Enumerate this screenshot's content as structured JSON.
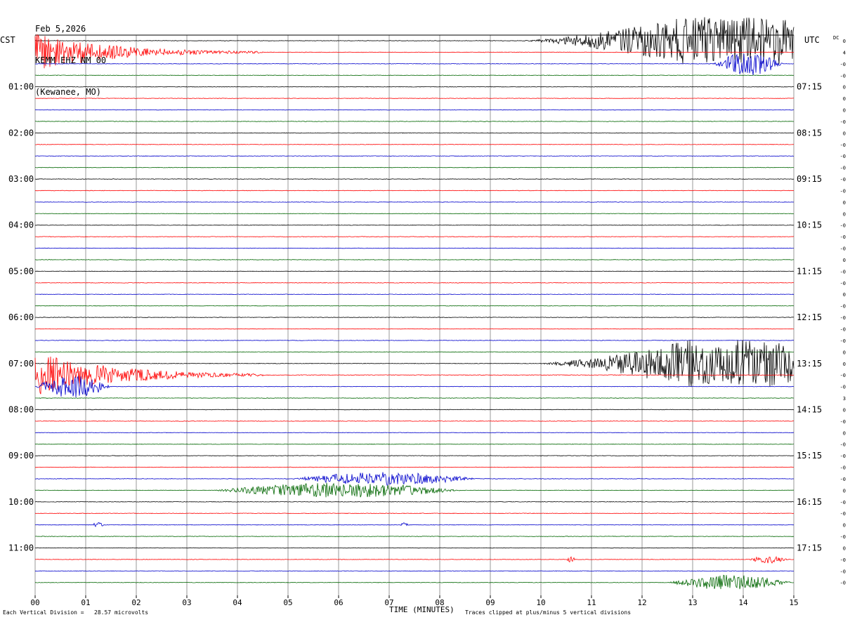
{
  "header": {
    "date": "Feb 5,2026",
    "station": "KEMM EHZ NM 00",
    "location": "(Kewanee, MO)"
  },
  "left_timezone": "CST",
  "right_timezone": "UTC",
  "right_header": "DC",
  "footer": {
    "scale": "Each Vertical Division =   28.57 microvolts",
    "xlabel": "TIME (MINUTES)",
    "clip_note": "Traces clipped at plus/minus 5 vertical divisions"
  },
  "colors": {
    "trace_cycle": [
      "#000000",
      "#ff0000",
      "#0000cc",
      "#006600"
    ],
    "grid": "#808080"
  },
  "chart_data": {
    "type": "line",
    "title": "Feb 5,2026 KEMM EHZ NM 00 (Kewanee, MO)",
    "xlabel": "TIME (MINUTES)",
    "xlim": [
      0,
      15
    ],
    "x_ticks": [
      "00",
      "01",
      "02",
      "03",
      "04",
      "05",
      "06",
      "07",
      "08",
      "09",
      "10",
      "11",
      "12",
      "13",
      "14",
      "15"
    ],
    "row_count": 48,
    "minutes_per_row": 15,
    "left_hour_labels": [
      "01:00",
      "02:00",
      "03:00",
      "04:00",
      "05:00",
      "06:00",
      "07:00",
      "08:00",
      "09:00",
      "10:00",
      "11:00"
    ],
    "right_hour_labels": [
      "07:15",
      "08:15",
      "09:15",
      "10:15",
      "11:15",
      "12:15",
      "13:15",
      "14:15",
      "15:15",
      "16:15",
      "17:15"
    ],
    "first_labeled_row": 4,
    "rows_per_hour": 4,
    "dc_offsets": [
      "0",
      "4",
      "-0",
      "-0",
      "0",
      "0",
      "0",
      "-0",
      "0",
      "-0",
      "-0",
      "-0",
      "-0",
      "-0",
      "0",
      "0",
      "-0",
      "-0",
      "-0",
      "0",
      "-0",
      "-0",
      "0",
      "-0",
      "-0",
      "-0",
      "-0",
      "0",
      "0",
      "-0",
      "-0",
      "3",
      "0",
      "-0",
      "0",
      "-0",
      "-0",
      "-0",
      "-0",
      "0",
      "-0",
      "-0",
      "0",
      "-0",
      "0",
      "-0",
      "-0",
      "-0"
    ],
    "events": [
      {
        "row": 0,
        "start_min": 9.5,
        "end_min": 15,
        "amplitude_div": 5,
        "note": "strong shaking, clipped"
      },
      {
        "row": 1,
        "start_min": 0,
        "end_min": 4.5,
        "amplitude_div": 4,
        "note": "decaying coda"
      },
      {
        "row": 2,
        "start_min": 13.4,
        "end_min": 14.8,
        "amplitude_div": 2.5
      },
      {
        "row": 28,
        "start_min": 9.8,
        "end_min": 15,
        "amplitude_div": 5,
        "note": "strong shaking, clipped"
      },
      {
        "row": 29,
        "start_min": 0,
        "end_min": 4.5,
        "amplitude_div": 5,
        "note": "decaying coda"
      },
      {
        "row": 30,
        "start_min": 0,
        "end_min": 1.5,
        "amplitude_div": 2.5
      },
      {
        "row": 38,
        "start_min": 5.0,
        "end_min": 8.8,
        "amplitude_div": 1.4
      },
      {
        "row": 39,
        "start_min": 3.5,
        "end_min": 8.5,
        "amplitude_div": 1.6
      },
      {
        "row": 42,
        "start_min": 1.1,
        "end_min": 1.4,
        "amplitude_div": 0.5
      },
      {
        "row": 42,
        "start_min": 7.2,
        "end_min": 7.4,
        "amplitude_div": 0.5
      },
      {
        "row": 45,
        "start_min": 10.5,
        "end_min": 10.7,
        "amplitude_div": 0.6
      },
      {
        "row": 45,
        "start_min": 14.1,
        "end_min": 14.9,
        "amplitude_div": 0.8
      },
      {
        "row": 47,
        "start_min": 12.5,
        "end_min": 15,
        "amplitude_div": 1.6
      }
    ]
  }
}
